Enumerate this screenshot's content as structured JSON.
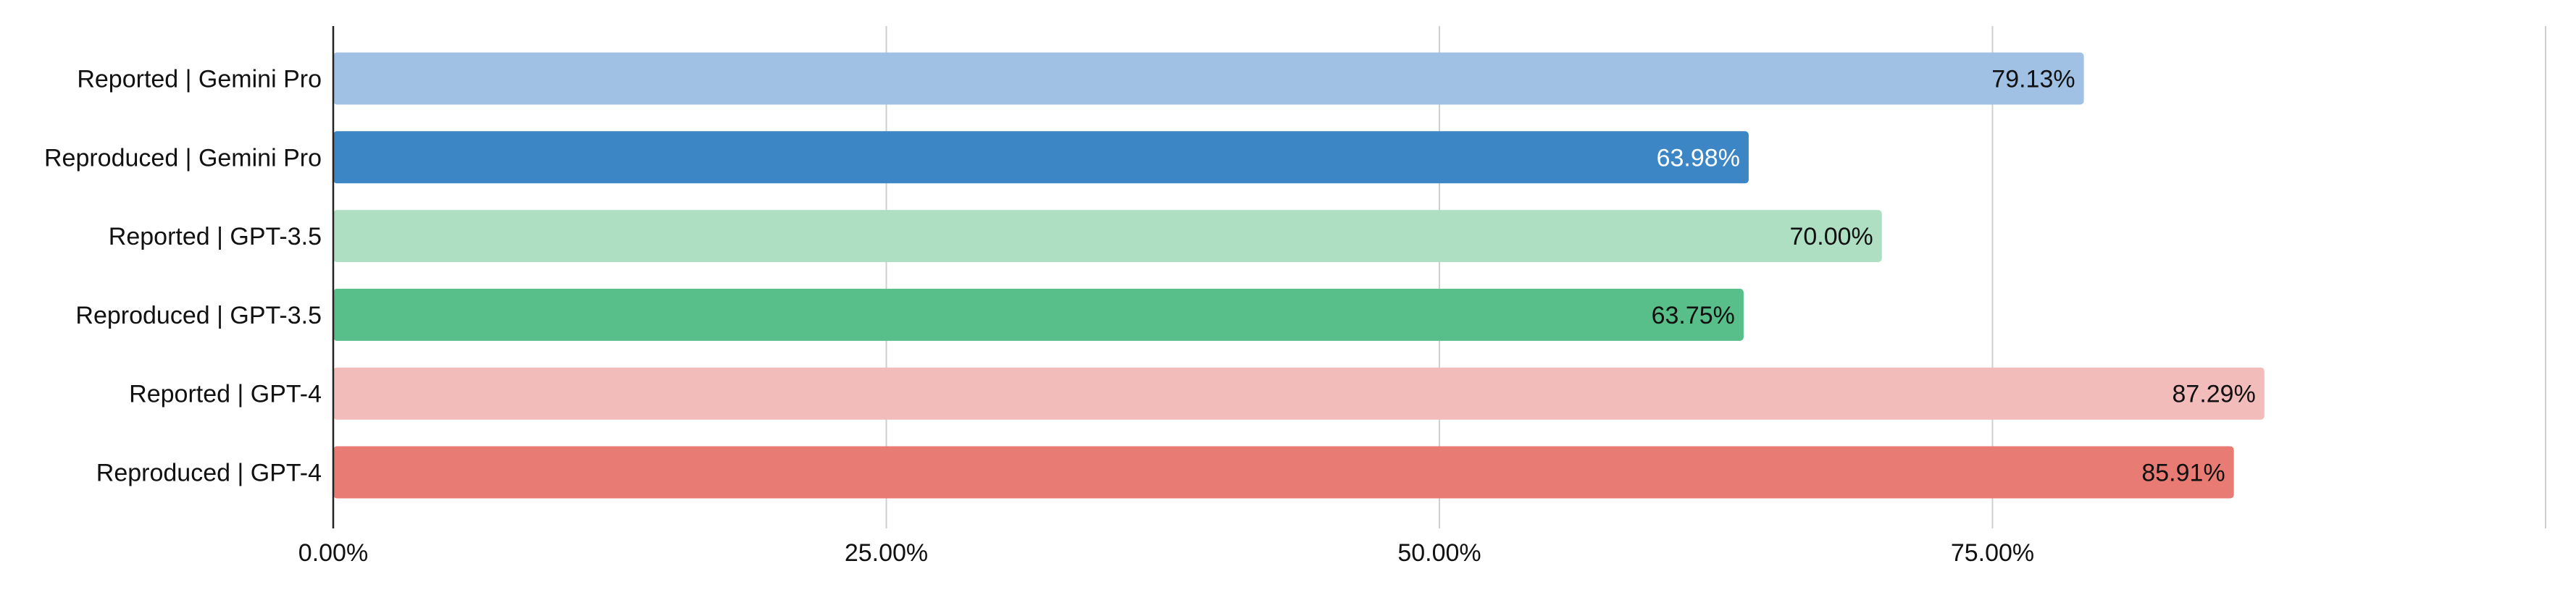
{
  "chart_data": {
    "type": "bar",
    "orientation": "horizontal",
    "categories": [
      "Reported | Gemini Pro",
      "Reproduced | Gemini Pro",
      "Reported | GPT-3.5",
      "Reproduced | GPT-3.5",
      "Reported | GPT-4",
      "Reproduced | GPT-4"
    ],
    "values": [
      79.13,
      63.98,
      70.0,
      63.75,
      87.29,
      85.91
    ],
    "value_labels": [
      "79.13%",
      "63.98%",
      "70.00%",
      "63.75%",
      "87.29%",
      "85.91%"
    ],
    "bar_colors": [
      "#a0c1e4",
      "#3c86c6",
      "#afdfc3",
      "#58be8a",
      "#f2bcba",
      "#e87b74"
    ],
    "label_colors": [
      "#111111",
      "#ffffff",
      "#111111",
      "#111111",
      "#111111",
      "#111111"
    ],
    "x_ticks": [
      0,
      25,
      50,
      75,
      100
    ],
    "x_tick_labels": [
      "0.00%",
      "25.00%",
      "50.00%",
      "75.00%",
      ""
    ],
    "xlim": [
      0,
      100
    ],
    "xlabel": "",
    "ylabel": "",
    "title": "",
    "grid": "vertical",
    "legend": "none"
  }
}
